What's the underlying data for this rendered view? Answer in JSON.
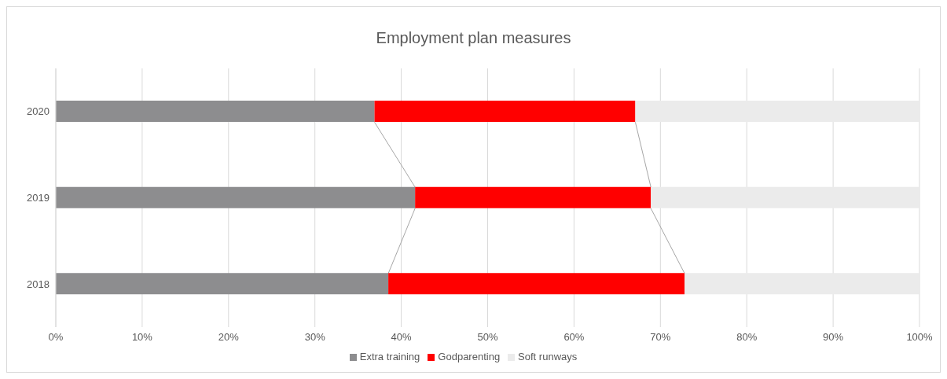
{
  "chart_data": {
    "type": "bar",
    "title": "Employment plan measures",
    "orientation": "horizontal",
    "stacked": true,
    "categories": [
      "2020",
      "2019",
      "2018"
    ],
    "series": [
      {
        "name": "Extra training",
        "color": "#8d8d8f",
        "values": [
          36.9,
          41.6,
          38.5
        ]
      },
      {
        "name": "Godparenting",
        "color": "#ff0000",
        "values": [
          30.2,
          27.3,
          34.3
        ]
      },
      {
        "name": "Soft runways",
        "color": "#ebebeb",
        "values": [
          32.9,
          31.1,
          27.2
        ]
      }
    ],
    "xlim": [
      0,
      100
    ],
    "xticks": [
      {
        "value": 0,
        "label": "0%"
      },
      {
        "value": 10,
        "label": "10%"
      },
      {
        "value": 20,
        "label": "20%"
      },
      {
        "value": 30,
        "label": "30%"
      },
      {
        "value": 40,
        "label": "40%"
      },
      {
        "value": 50,
        "label": "50%"
      },
      {
        "value": 60,
        "label": "60%"
      },
      {
        "value": 70,
        "label": "70%"
      },
      {
        "value": 80,
        "label": "80%"
      },
      {
        "value": 90,
        "label": "90%"
      },
      {
        "value": 100,
        "label": "100%"
      }
    ],
    "grid": "x",
    "legend": "bottom"
  }
}
